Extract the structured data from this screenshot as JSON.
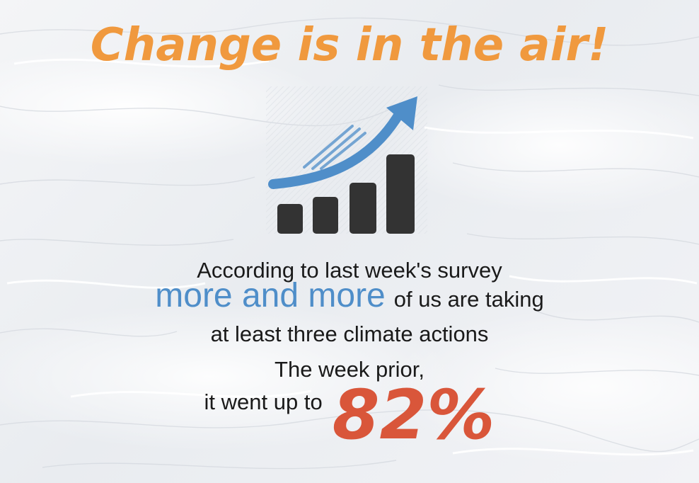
{
  "title": "Change is in the air!",
  "graphic": {
    "icon": "rising-bar-chart-with-arrow-icon",
    "bar_color": "#333333",
    "arrow_color": "#4f8ec9"
  },
  "text": {
    "line1": "According to last week's survey",
    "line2_highlight": "more and more",
    "line2_rest": "of us are taking",
    "line3": "at least three climate actions",
    "line4": "The week prior,",
    "line5_lead": "it went up to",
    "line5_value": "82%"
  },
  "colors": {
    "title": "#f0993e",
    "highlight": "#4f8ec9",
    "value": "#d9563a",
    "body_text": "#1a1a1a"
  }
}
